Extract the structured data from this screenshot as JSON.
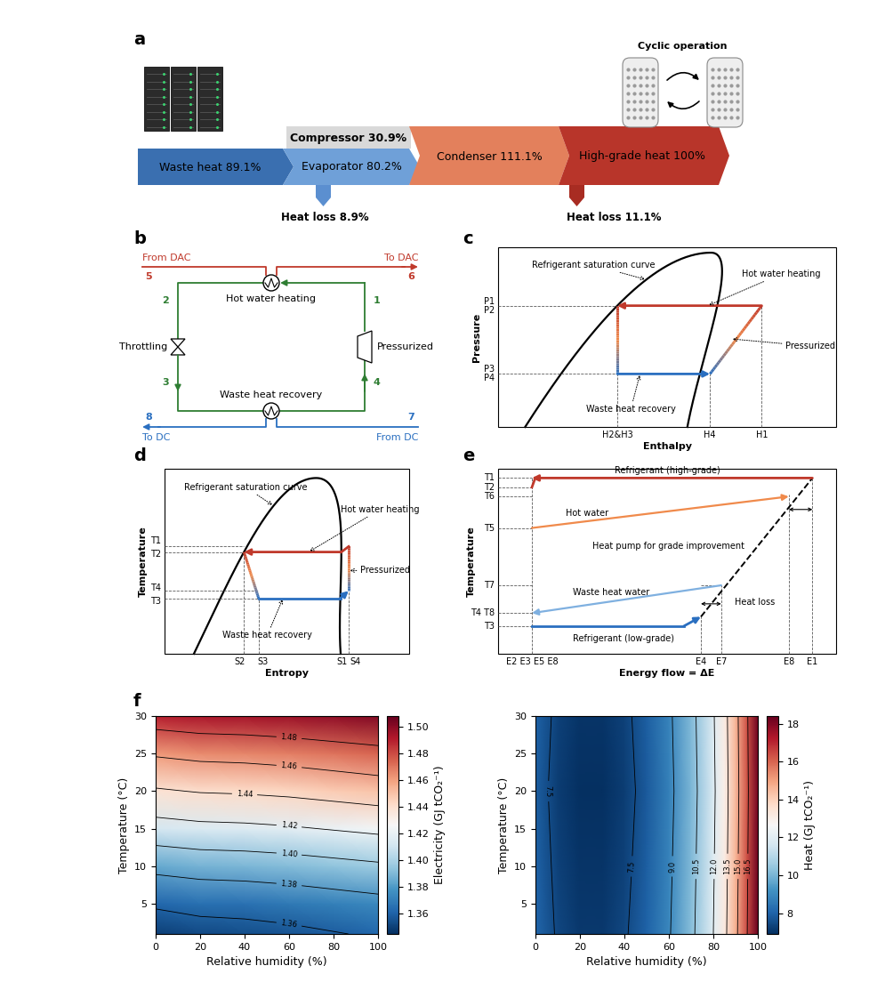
{
  "panel_labels": [
    "a",
    "b",
    "c",
    "d",
    "e",
    "f"
  ],
  "a": {
    "waste_heat": "Waste heat 89.1%",
    "compressor": "Compressor 30.9%",
    "evaporator": "Evaporator 80.2%",
    "condenser": "Condenser 111.1%",
    "high_grade_heat": "High-grade heat 100%",
    "evaporator_loss": "Heat loss 8.9%",
    "condenser_loss": "Heat loss 11.1%",
    "dac_cycle": "Cyclic operation"
  },
  "b": {
    "from_dac": "From DAC",
    "to_dac": "To DAC",
    "from_dc": "From DC",
    "to_dc": "To DC",
    "hot_exchanger": "Hot water heating",
    "cold_exchanger": "Waste heat recovery",
    "valve": "Throttling",
    "compressor": "Pressurized",
    "node_labels": [
      "1",
      "2",
      "3",
      "4",
      "5",
      "6",
      "7",
      "8"
    ]
  },
  "c": {
    "curve": "Refrigerant saturation curve",
    "hot": "Hot water heating",
    "compression": "Pressurized",
    "waste": "Waste heat recovery",
    "x_label": "Enthalpy",
    "y_label": "Pressure",
    "y_tick_labels": [
      "P1",
      "P2",
      "P3",
      "P4"
    ],
    "x_tick_labels": [
      "H2&H3",
      "H4",
      "H1"
    ]
  },
  "d": {
    "curve": "Refrigerant saturation curve",
    "hot": "Hot water heating",
    "compression": "Pressurized",
    "waste": "Waste heat recovery",
    "x_label": "Entropy",
    "y_label": "Temperature",
    "y_tick_labels": [
      "T1",
      "T2",
      "T4",
      "T3"
    ],
    "x_tick_labels": [
      "S2",
      "S3",
      "S1",
      "S4"
    ]
  },
  "e": {
    "high_grade": "Refrigerant (high-grade)",
    "hot_water": "Hot water",
    "heat_pump": "Heat pump for grade improvement",
    "waste_water": "Waste heat water",
    "heat_loss": "Heat loss",
    "low_grade": "Refrigerant (low-grade)",
    "x_label": "Energy flow = ΔE",
    "y_label": "Temperature",
    "y_tick_labels": [
      "T1",
      "T2",
      "T6",
      "T5",
      "T7",
      "T4 T8",
      "T3"
    ],
    "x_tick_labels": [
      "E2 E3 E5 E8",
      "E4",
      "E7",
      "E8",
      "E1"
    ]
  },
  "chart_data": [
    {
      "type": "heatmap",
      "x_label": "Relative humidity (%)",
      "y_label": "Temperature (°C)",
      "x": [
        0,
        20,
        40,
        60,
        80,
        100
      ],
      "y": [
        1,
        5,
        10,
        15,
        20,
        25,
        30
      ],
      "cells": [
        [
          1.35,
          1.353,
          1.354,
          1.356,
          1.359,
          1.362
        ],
        [
          1.362,
          1.365,
          1.366,
          1.368,
          1.371,
          1.374
        ],
        [
          1.385,
          1.388,
          1.389,
          1.391,
          1.394,
          1.397
        ],
        [
          1.412,
          1.415,
          1.416,
          1.418,
          1.421,
          1.424
        ],
        [
          1.438,
          1.441,
          1.442,
          1.444,
          1.447,
          1.45
        ],
        [
          1.462,
          1.465,
          1.466,
          1.468,
          1.471,
          1.474
        ],
        [
          1.49,
          1.493,
          1.494,
          1.496,
          1.499,
          1.502
        ]
      ],
      "xlim": [
        0,
        100
      ],
      "ylim": [
        1,
        30
      ],
      "xticks": [
        0,
        20,
        40,
        60,
        80,
        100
      ],
      "yticks": [
        5,
        10,
        15,
        20,
        25,
        30
      ],
      "colorbar_label": "Electricity (GJ tCO₂⁻¹)",
      "colorbar_range": [
        1.345,
        1.508
      ],
      "colorbar_ticks": [
        1.36,
        1.38,
        {
          "value": 1.4,
          "label": "1.40"
        },
        1.42,
        1.44,
        1.46,
        1.48,
        {
          "value": 1.5,
          "label": "1.50"
        }
      ],
      "contour_levels": [
        1.36,
        1.38,
        {
          "value": 1.4,
          "label": "1.40"
        },
        1.42,
        1.44,
        1.46,
        1.48
      ]
    },
    {
      "type": "heatmap",
      "x_label": "Relative humidity (%)",
      "y_label": "Temperature (°C)",
      "x": [
        0,
        10,
        20,
        30,
        40,
        50,
        60,
        70,
        80,
        85,
        90,
        95,
        100
      ],
      "y": [
        1,
        10,
        20,
        30
      ],
      "cells": [
        [
          8.1,
          7.4,
          7.1,
          7.1,
          7.4,
          8.0,
          8.9,
          10.2,
          12.0,
          13.2,
          14.7,
          16.4,
          18.4
        ],
        [
          8.0,
          7.3,
          7.0,
          7.0,
          7.3,
          7.9,
          8.8,
          10.1,
          11.9,
          13.1,
          14.6,
          16.3,
          18.3
        ],
        [
          7.9,
          7.2,
          6.9,
          6.9,
          7.2,
          7.8,
          8.7,
          10.0,
          11.8,
          13.0,
          14.5,
          16.2,
          18.2
        ],
        [
          8.0,
          7.3,
          7.0,
          7.0,
          7.3,
          7.9,
          8.8,
          10.1,
          11.9,
          13.1,
          14.6,
          16.3,
          18.3
        ]
      ],
      "xlim": [
        0,
        100
      ],
      "ylim": [
        1,
        30
      ],
      "xticks": [
        0,
        20,
        40,
        60,
        80,
        100
      ],
      "yticks": [
        5,
        10,
        15,
        20,
        25,
        30
      ],
      "colorbar_label": "Heat (GJ tCO₂⁻¹)",
      "colorbar_range": [
        6.9,
        18.4
      ],
      "colorbar_ticks": [
        8,
        10,
        12,
        14,
        16,
        18
      ],
      "contour_levels": [
        7.5,
        9.0,
        10.5,
        12.0,
        13.5,
        15.0,
        16.5
      ]
    }
  ]
}
